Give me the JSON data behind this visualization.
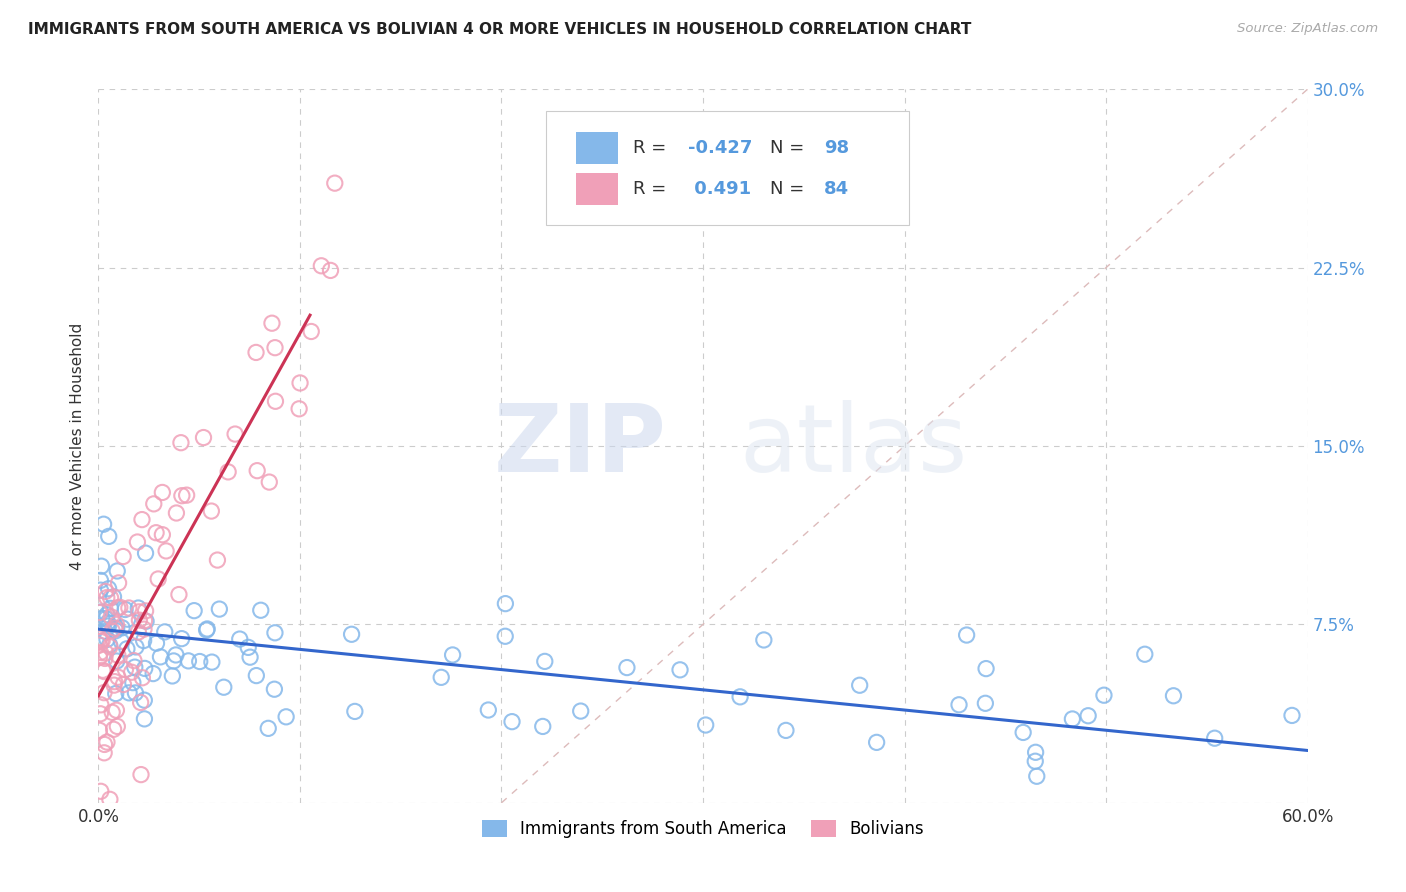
{
  "title": "IMMIGRANTS FROM SOUTH AMERICA VS BOLIVIAN 4 OR MORE VEHICLES IN HOUSEHOLD CORRELATION CHART",
  "source": "Source: ZipAtlas.com",
  "ylabel": "4 or more Vehicles in Household",
  "x_min": 0.0,
  "x_max": 0.6,
  "y_min": 0.0,
  "y_max": 0.3,
  "y_ticks_right": [
    0.0,
    0.075,
    0.15,
    0.225,
    0.3
  ],
  "y_tick_labels_right": [
    "",
    "7.5%",
    "15.0%",
    "22.5%",
    "30.0%"
  ],
  "grid_color": "#cccccc",
  "background_color": "#ffffff",
  "blue_color": "#85b8ea",
  "pink_color": "#f0a0b8",
  "blue_line_color": "#3366cc",
  "pink_line_color": "#cc3355",
  "dashed_line_color": "#ddbbbb",
  "legend_label_blue": "Immigrants from South America",
  "legend_label_pink": "Bolivians",
  "watermark_zip": "ZIP",
  "watermark_atlas": "atlas",
  "R_color": "#5599dd",
  "N_color": "#5599dd",
  "blue_line_x": [
    0.0,
    0.6
  ],
  "blue_line_y": [
    0.073,
    0.022
  ],
  "pink_line_x": [
    0.0,
    0.105
  ],
  "pink_line_y": [
    0.045,
    0.205
  ],
  "dashed_line_x": [
    0.2,
    0.6
  ],
  "dashed_line_y": [
    0.0,
    0.3
  ],
  "blue_seed": 42,
  "pink_seed": 99
}
